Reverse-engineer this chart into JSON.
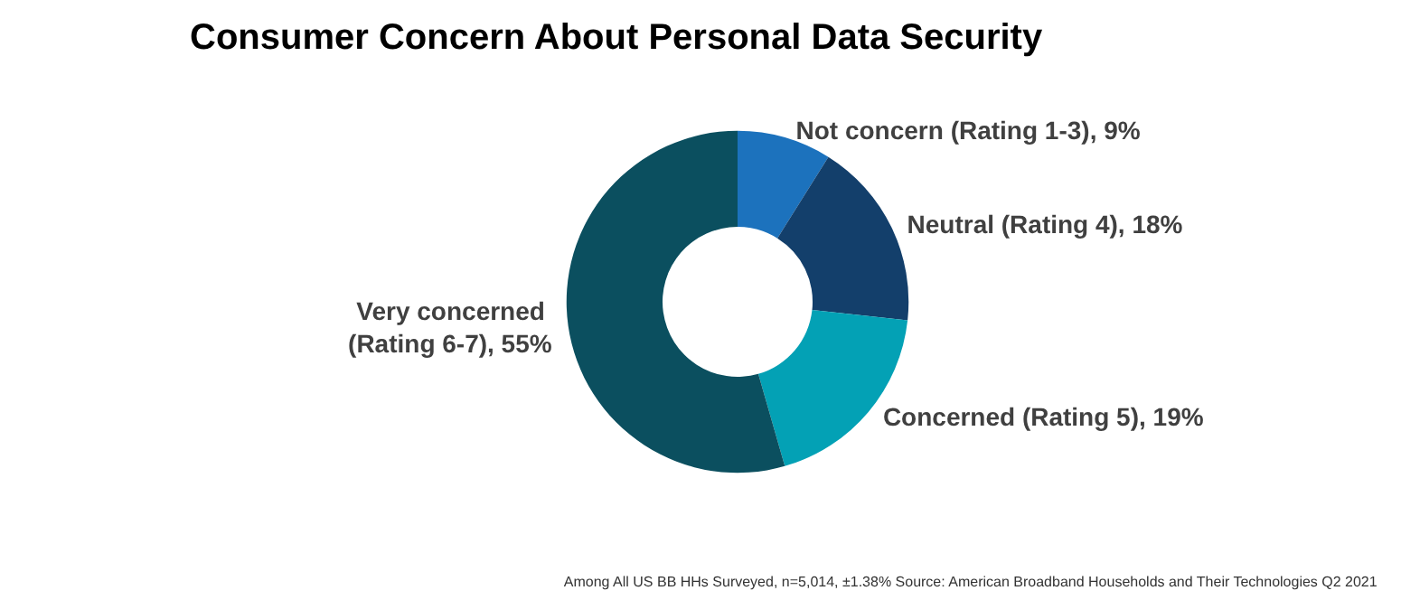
{
  "chart_data": {
    "type": "donut",
    "title": "Consumer Concern About Personal Data Security",
    "categories": [
      "Not concern (Rating 1-3)",
      "Neutral (Rating 4)",
      "Concerned (Rating 5)",
      "Very concerned (Rating 6-7)"
    ],
    "values": [
      9,
      18,
      19,
      55
    ],
    "value_labels": [
      "9%",
      "18%",
      "19%",
      "55%"
    ],
    "colors": [
      "#1c72bd",
      "#133f6b",
      "#03a1b5",
      "#0b4f5f"
    ],
    "legend": false,
    "annotations": [
      "Among All US BB HHs Surveyed, n=5,014, ±1.38% Source: American Broadband Households and Their Technologies Q2 2021"
    ]
  }
}
